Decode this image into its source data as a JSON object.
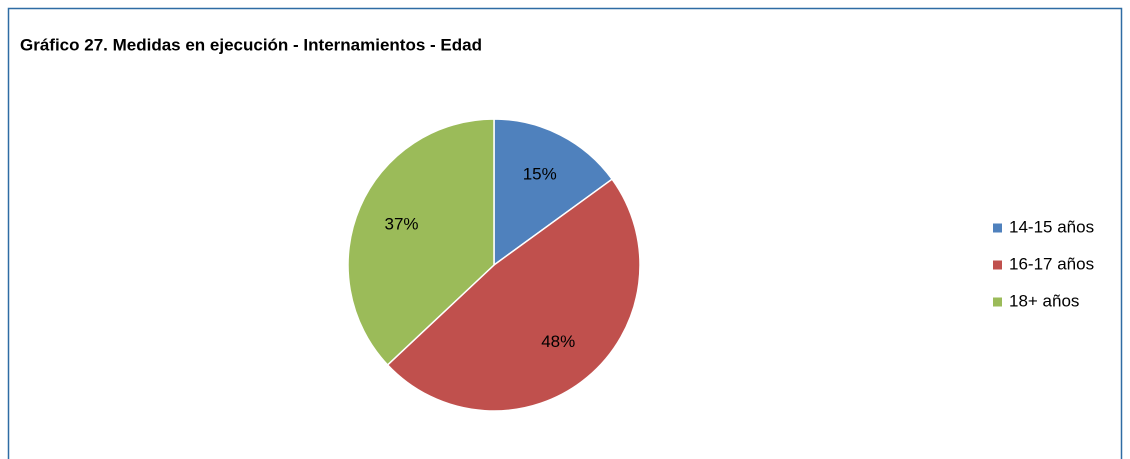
{
  "chart_data": {
    "type": "pie",
    "title": "Gráfico 27. Medidas en ejecución - Internamientos - Edad",
    "categories": [
      "14-15 años",
      "16-17 años",
      "18+ años"
    ],
    "values": [
      15,
      48,
      37
    ],
    "value_labels": [
      "15%",
      "48%",
      "37%"
    ],
    "colors": [
      "#4f81bd",
      "#c0504d",
      "#9bbb59"
    ],
    "legend": "right"
  }
}
